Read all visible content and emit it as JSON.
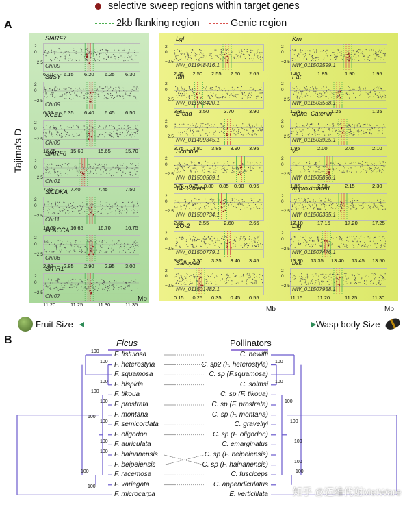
{
  "legend": {
    "sweep": "selective sweep regions within target genes",
    "flank": "2kb flanking region",
    "genic": "Genic region"
  },
  "panel_a": {
    "letter": "A",
    "ylabel": "Tajima's D",
    "left_plots": [
      {
        "gene": "SlARF7",
        "chr": "Chr09",
        "ticks": [
          "6.10",
          "6.15",
          "6.20",
          "6.25",
          "6.30"
        ]
      },
      {
        "gene": "SuSY",
        "chr": "Chr09",
        "ticks": [
          "6.30",
          "6.35",
          "6.40",
          "6.45",
          "6.50"
        ]
      },
      {
        "gene": "NCED",
        "chr": "Chr09",
        "ticks": [
          "15.55",
          "15.60",
          "15.65",
          "15.70"
        ]
      },
      {
        "gene": "SlARF8",
        "chr": "Chr01",
        "ticks": [
          "7.35",
          "7.40",
          "7.45",
          "7.50"
        ]
      },
      {
        "gene": "SlCDKA",
        "chr": "Chr11",
        "ticks": [
          "16.60",
          "16.65",
          "16.70",
          "16.75"
        ]
      },
      {
        "gene": "FLACCA",
        "chr": "Chr06",
        "ticks": [
          "2.80",
          "2.85",
          "2.90",
          "2.95",
          "3.00"
        ]
      },
      {
        "gene": "SlTIR1",
        "chr": "Chr07",
        "ticks": [
          "11.20",
          "11.25",
          "11.30",
          "11.35"
        ]
      }
    ],
    "mid_plots": [
      {
        "gene": "Lgl",
        "chr": "NW_011948416.1",
        "ticks": [
          "2.45",
          "2.50",
          "2.55",
          "2.60",
          "2.65"
        ]
      },
      {
        "gene": "hth",
        "chr": "NW_011948420.1",
        "ticks": [
          "3.30",
          "3.50",
          "3.70",
          "3.90"
        ]
      },
      {
        "gene": "E-cad",
        "chr": "NW_011499345.1",
        "ticks": [
          "3.75",
          "3.80",
          "3.85",
          "3.90",
          "3.95"
        ]
      },
      {
        "gene": "Scribble",
        "chr": "NW_011500569.1",
        "ticks": [
          "0.70",
          "0.75",
          "0.80",
          "0.85",
          "0.90",
          "0.95"
        ]
      },
      {
        "gene": "14-3-3zeta",
        "chr": "NW_011500734.1",
        "ticks": [
          "2.50",
          "2.55",
          "2.60",
          "2.65"
        ]
      },
      {
        "gene": "ZO-2",
        "chr": "NW_011500779.1",
        "ticks": [
          "3.25",
          "3.30",
          "3.35",
          "3.40",
          "3.45"
        ]
      },
      {
        "gene": "Salloped",
        "chr": "NW_011501482.1",
        "ticks": [
          "0.15",
          "0.25",
          "0.35",
          "0.45",
          "0.55"
        ]
      }
    ],
    "right_plots": [
      {
        "gene": "Krn",
        "chr": "NW_011502599.1",
        "ticks": [
          "1.80",
          "1.85",
          "1.90",
          "1.95"
        ]
      },
      {
        "gene": "Fat",
        "chr": "NW_011503538.1",
        "ticks": [
          "1.15",
          "1.25",
          "1.35"
        ]
      },
      {
        "gene": "alpha_Catenin",
        "chr": "NW_011503925.1",
        "ticks": [
          "1.95",
          "2.00",
          "2.05",
          "2.10"
        ]
      },
      {
        "gene": "vn",
        "chr": "NW_011505896.1",
        "ticks": [
          "1.85",
          "2.00",
          "2.15",
          "2.30"
        ]
      },
      {
        "gene": "approximated",
        "chr": "NW_011506335.1",
        "ticks": [
          "17.10",
          "17.15",
          "17.20",
          "17.25"
        ]
      },
      {
        "gene": "Dlg",
        "chr": "NW_011507476.1",
        "ticks": [
          "13.30",
          "13.35",
          "13.40",
          "13.45",
          "13.50"
        ]
      },
      {
        "gene": "bsk",
        "chr": "NW_011507958.1",
        "ticks": [
          "11.15",
          "11.20",
          "11.25",
          "11.30"
        ]
      }
    ],
    "mb1": "Mb",
    "mb2": "Mb",
    "mb3": "Mb",
    "fruit_label": "Fruit Size",
    "wasp_label": "Wasp body Size"
  },
  "panel_b": {
    "letter": "B",
    "ficus_header": "Ficus",
    "poll_header": "Pollinators",
    "ficus": [
      "F. fistulosa",
      "F. heterostyla",
      "F. squamosa",
      "F. hispida",
      "F. tikoua",
      "F. prostrata",
      "F. montana",
      "F. semicordata",
      "F. oligodon",
      "F. auriculata",
      "F. hainanensis",
      "F. beipeiensis",
      "F. racemosa",
      "F. variegata",
      "F. microcarpa"
    ],
    "pollinators": [
      "C. hewitti",
      "C. sp2 (F. heterostyla)",
      "C. sp (F.squamosa)",
      "C. solmsi",
      "C. sp (F. tikoua)",
      "C. sp (F. prostrata)",
      "C. sp (F. montana)",
      "C. graveliyi",
      "C. sp (F. oligodon)",
      "C. emarginatus",
      "C. sp (F. beipeiensis)",
      "C. sp (F. hainanensis)",
      "C. fusciceps",
      "C. appendiculatus",
      "E. verticillata"
    ],
    "bootstrap": "100",
    "watermark": "知乎 @迈维代谢MetWare"
  },
  "colors": {
    "green_panel": "#bfe4b0",
    "yellow_panel": "#e6ef7a",
    "tree": "#6a5acd",
    "sweep_dot": "#8b1a1a"
  }
}
